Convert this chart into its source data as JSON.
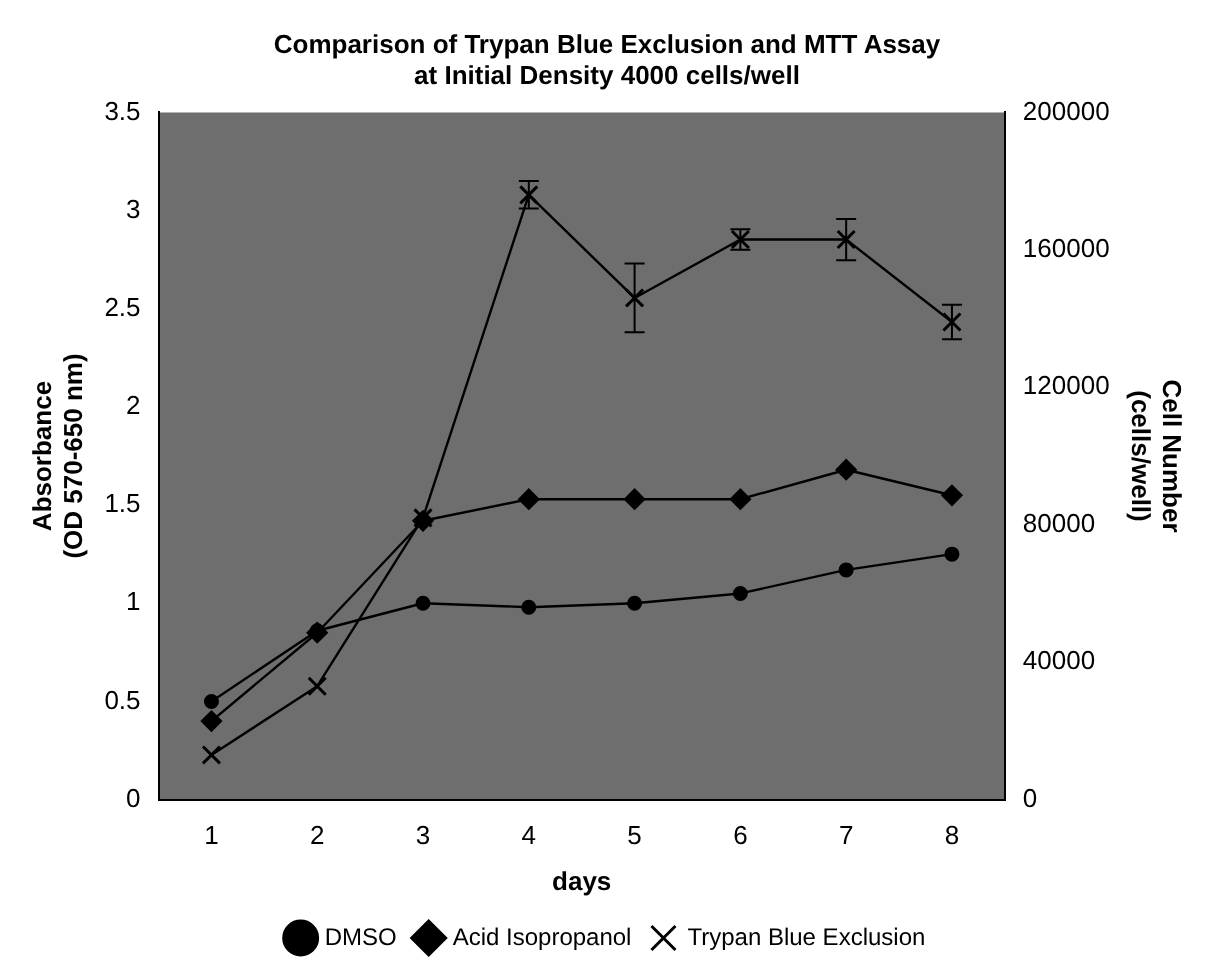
{
  "chart_data": {
    "type": "line",
    "title": "Comparison of Trypan Blue Exclusion and MTT Assay\nat Initial Density 4000 cells/well",
    "xlabel": "days",
    "ylabel": "Absorbance\n(OD 570-650 nm)",
    "y2label": "Cell Number\n(cells/well)",
    "categories": [
      "1",
      "2",
      "3",
      "4",
      "5",
      "6",
      "7",
      "8"
    ],
    "series": [
      {
        "name": "DMSO",
        "color": "#000000",
        "marker": "circle",
        "values": [
          0.5,
          0.86,
          1.0,
          0.98,
          1.0,
          1.05,
          1.17,
          1.25
        ]
      },
      {
        "name": "Acid Isopropanol",
        "color": "#000000",
        "marker": "diamond",
        "values": [
          0.4,
          0.85,
          1.42,
          1.53,
          1.53,
          1.53,
          1.68,
          1.55
        ]
      },
      {
        "name": "Trypan Blue Exclusion",
        "color": "#000000",
        "marker": "cross",
        "axis": "y2",
        "values": [
          13000,
          33000,
          82000,
          176000,
          146000,
          163000,
          163000,
          139000
        ],
        "errors": [
          null,
          null,
          null,
          4000,
          10000,
          3000,
          6000,
          5000
        ]
      }
    ],
    "ylim": [
      0,
      3.5
    ],
    "yticks": [
      0,
      0.5,
      1,
      1.5,
      2,
      2.5,
      3,
      3.5
    ],
    "y2lim": [
      0,
      200000
    ],
    "y2ticks": [
      0,
      40000,
      80000,
      120000,
      160000,
      200000
    ],
    "grid": false,
    "legend": "bottom"
  }
}
